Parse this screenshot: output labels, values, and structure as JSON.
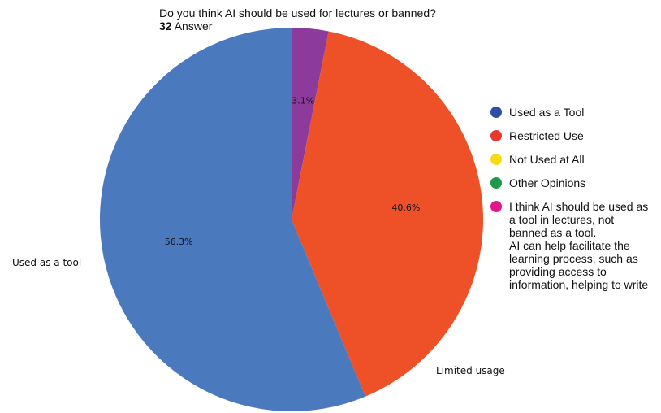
{
  "header": {
    "question": "Do you think AI should be used for lectures or banned?",
    "count": "32",
    "count_label": "Answer"
  },
  "chart_data": {
    "type": "pie",
    "title": "Do you think AI should be used for lectures or banned?",
    "start_angle": "top, clockwise",
    "slices": [
      {
        "value": 3.1,
        "label": "3.1%",
        "color": "#8c3a9b",
        "outer_label": ""
      },
      {
        "value": 40.6,
        "label": "40.6%",
        "color": "#ee5127",
        "outer_label": "Limited usage"
      },
      {
        "value": 56.3,
        "label": "56.3%",
        "color": "#4a79bd",
        "outer_label": "Used as a tool"
      }
    ]
  },
  "legend": [
    {
      "label": "Used as a Tool",
      "color": "#2d4fa8"
    },
    {
      "label": "Restricted Use",
      "color": "#e53a2d"
    },
    {
      "label": "Not Used at All",
      "color": "#f5dc16"
    },
    {
      "label": "Other Opinions",
      "color": "#1d9a4c"
    },
    {
      "label": "I think AI should be used as\na tool in lectures, not\nbanned as a tool.\nAI can help facilitate the\nlearning process, such as\nproviding access to\ninformation, helping to write",
      "color": "#e3158a"
    }
  ]
}
